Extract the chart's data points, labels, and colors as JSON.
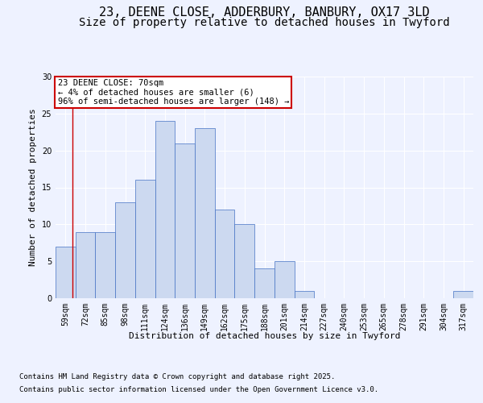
{
  "title_line1": "23, DEENE CLOSE, ADDERBURY, BANBURY, OX17 3LD",
  "title_line2": "Size of property relative to detached houses in Twyford",
  "xlabel": "Distribution of detached houses by size in Twyford",
  "ylabel": "Number of detached properties",
  "bar_categories": [
    "59sqm",
    "72sqm",
    "85sqm",
    "98sqm",
    "111sqm",
    "124sqm",
    "136sqm",
    "149sqm",
    "162sqm",
    "175sqm",
    "188sqm",
    "201sqm",
    "214sqm",
    "227sqm",
    "240sqm",
    "253sqm",
    "265sqm",
    "278sqm",
    "291sqm",
    "304sqm",
    "317sqm"
  ],
  "bar_values": [
    7,
    9,
    9,
    13,
    16,
    24,
    21,
    23,
    12,
    10,
    4,
    5,
    1,
    0,
    0,
    0,
    0,
    0,
    0,
    0,
    1
  ],
  "bar_color": "#ccd9f0",
  "bar_edge_color": "#4472c4",
  "annotation_box_text": "23 DEENE CLOSE: 70sqm\n← 4% of detached houses are smaller (6)\n96% of semi-detached houses are larger (148) →",
  "annotation_box_color": "#ffffff",
  "annotation_box_edge_color": "#cc0000",
  "vline_color": "#cc0000",
  "ylim": [
    0,
    30
  ],
  "yticks": [
    0,
    5,
    10,
    15,
    20,
    25,
    30
  ],
  "background_color": "#eef2ff",
  "plot_bg_color": "#eef2ff",
  "grid_color": "#ffffff",
  "footer_line1": "Contains HM Land Registry data © Crown copyright and database right 2025.",
  "footer_line2": "Contains public sector information licensed under the Open Government Licence v3.0.",
  "title_fontsize": 11,
  "subtitle_fontsize": 10,
  "axis_label_fontsize": 8,
  "tick_fontsize": 7,
  "annotation_fontsize": 7.5,
  "footer_fontsize": 6.5,
  "bin_edges": [
    59,
    72,
    85,
    98,
    111,
    124,
    136,
    149,
    162,
    175,
    188,
    201,
    214,
    227,
    240,
    253,
    265,
    278,
    291,
    304,
    317
  ],
  "prop_size": 70
}
